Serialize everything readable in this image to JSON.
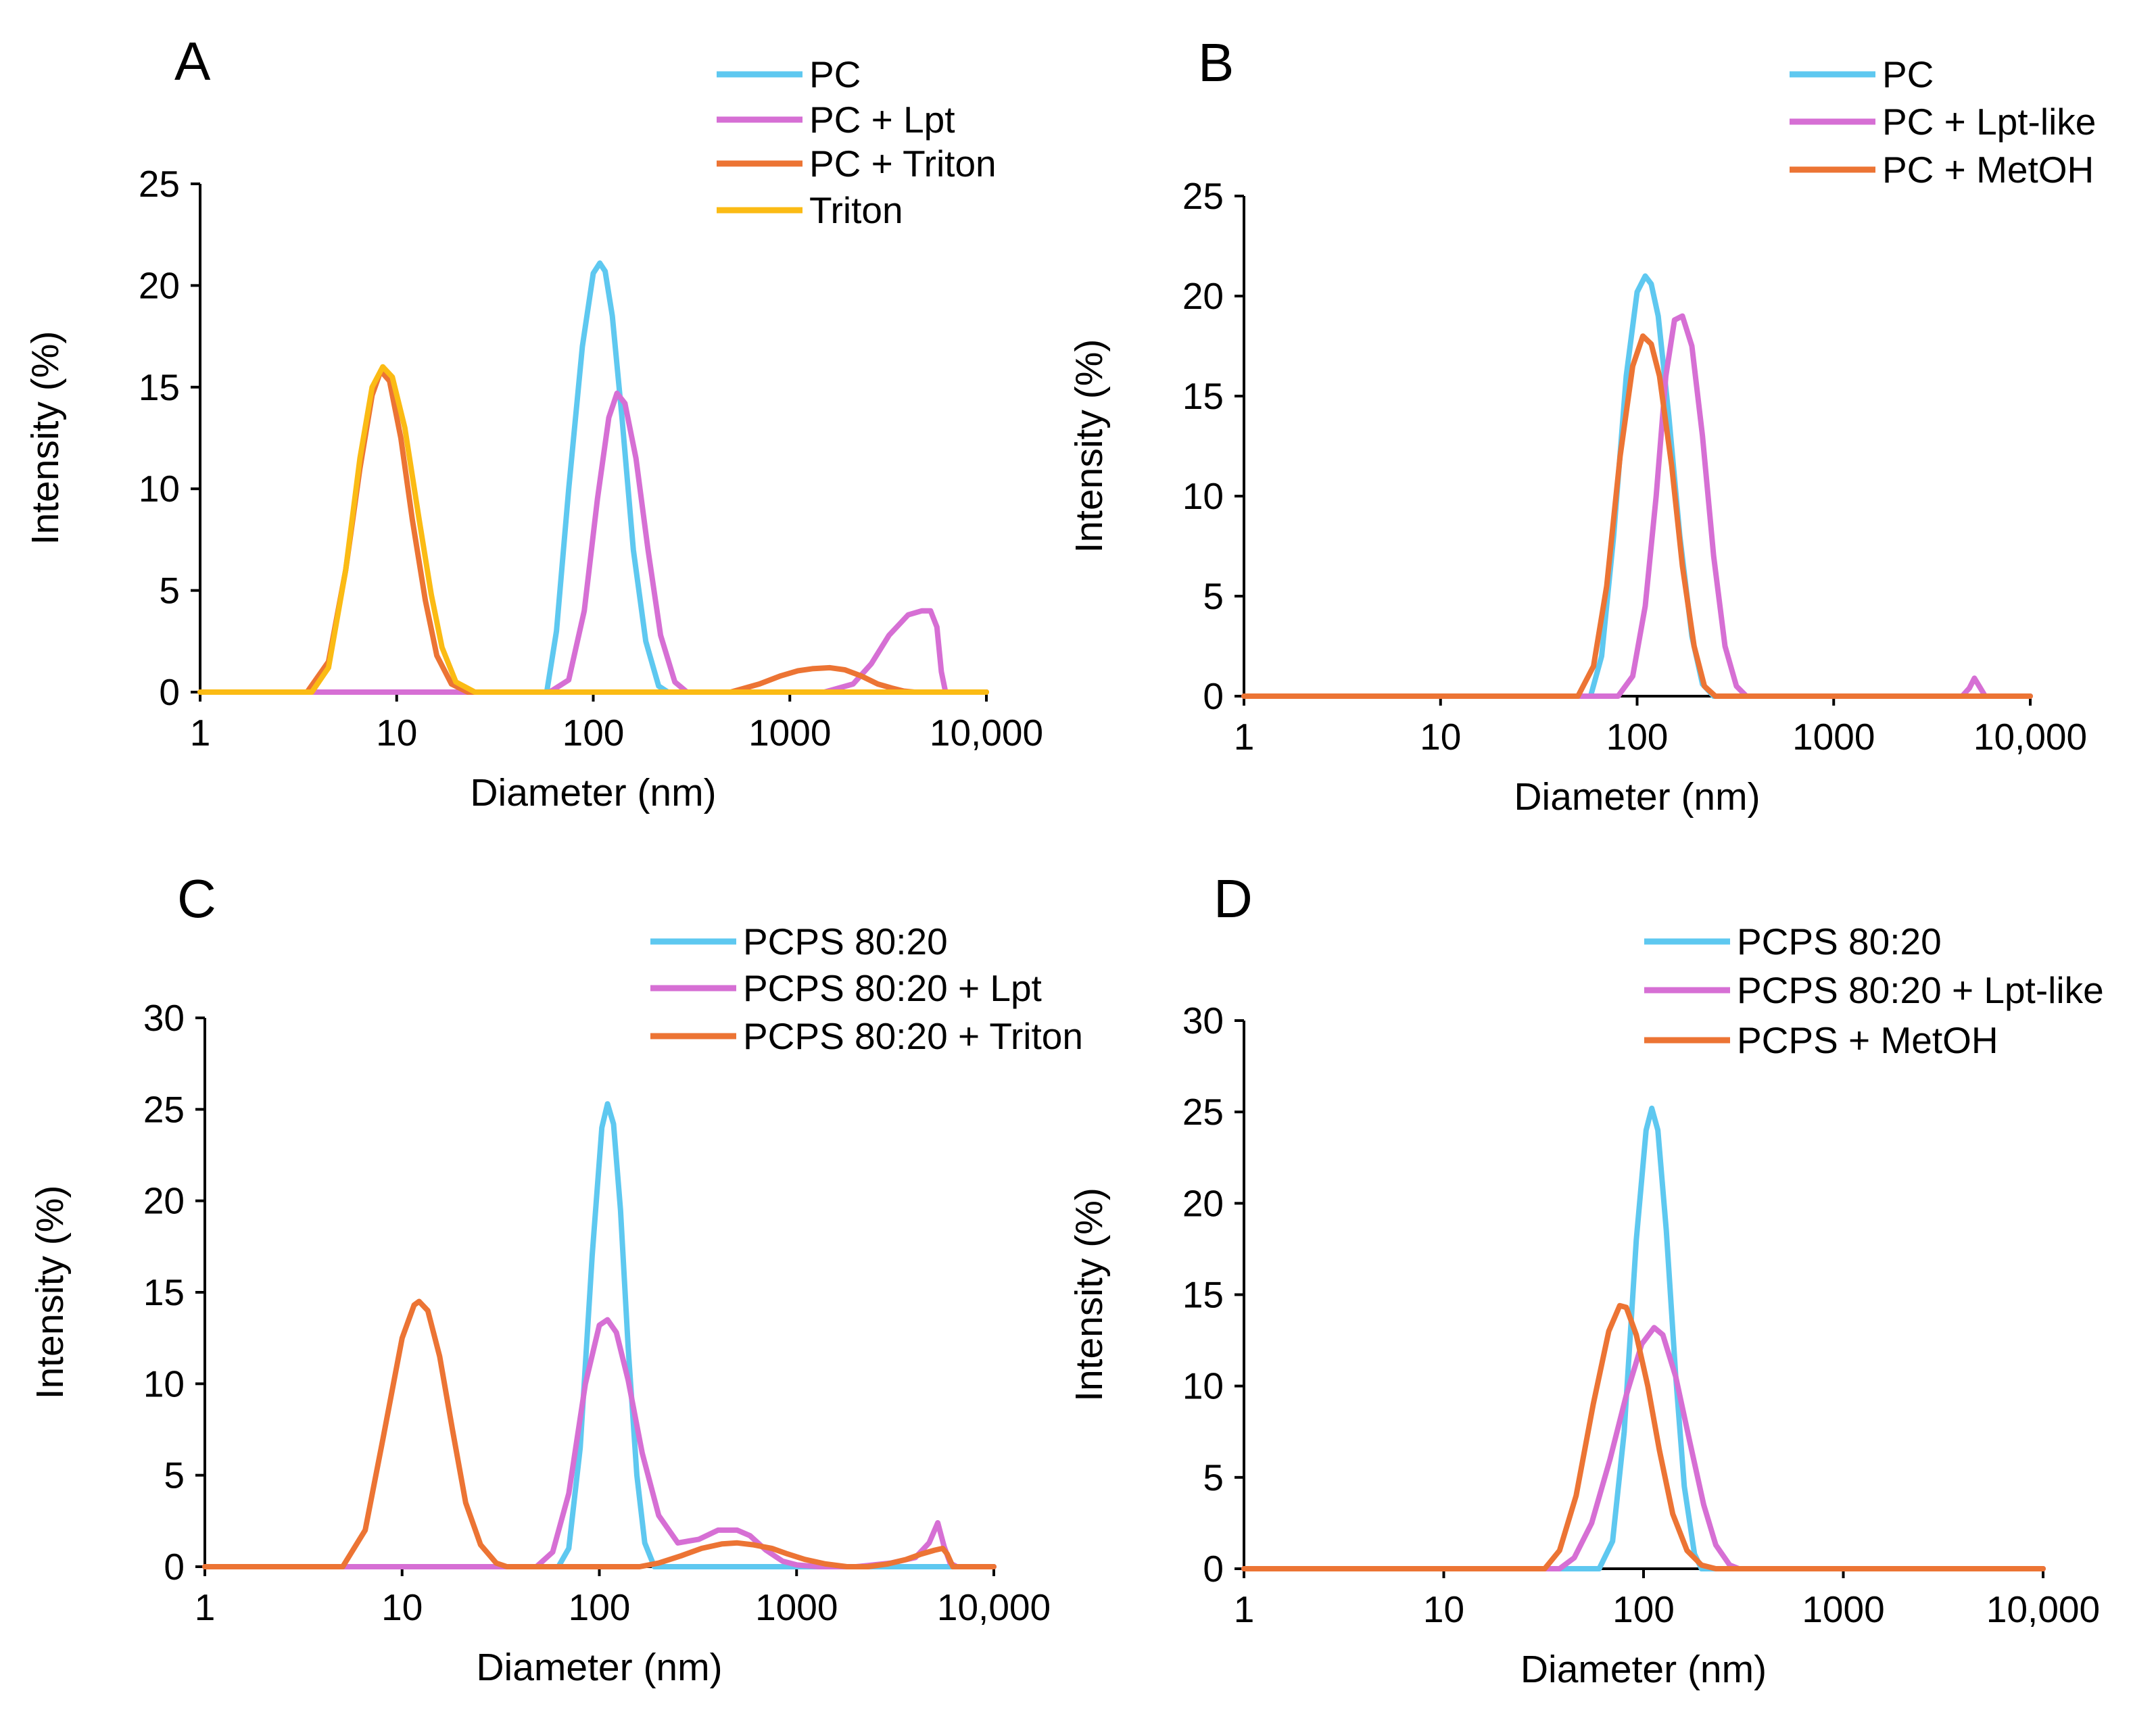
{
  "chart_data": [
    {
      "id": "A",
      "type": "line",
      "panel_label": "A",
      "xlabel": "Diameter (nm)",
      "ylabel": "Intensity (%)",
      "xscale": "log",
      "xlim": [
        1,
        10000
      ],
      "ylim": [
        0,
        25
      ],
      "xticks": [
        1,
        10,
        100,
        1000,
        10000
      ],
      "xtick_labels": [
        "1",
        "10",
        "100",
        "1000",
        "10,000"
      ],
      "yticks": [
        0,
        5,
        10,
        15,
        20,
        25
      ],
      "ytick_labels": [
        "0",
        "5",
        "10",
        "15",
        "20",
        "25"
      ],
      "legend_position": "top-right",
      "series": [
        {
          "name": "PC",
          "color": "#5ec8f0",
          "x": [
            1,
            58,
            65,
            75,
            88,
            100,
            108,
            115,
            125,
            140,
            160,
            185,
            215,
            240,
            10000
          ],
          "y": [
            0,
            0,
            3,
            10,
            17,
            20.6,
            21.1,
            20.7,
            18.5,
            13.5,
            7,
            2.5,
            0.3,
            0,
            0
          ]
        },
        {
          "name": "PC + Lpt",
          "color": "#d66fd4",
          "x": [
            1,
            60,
            75,
            90,
            105,
            120,
            132,
            145,
            165,
            190,
            220,
            260,
            300,
            1500,
            2100,
            2600,
            3200,
            4000,
            4700,
            5200,
            5600,
            5900,
            6200,
            10000
          ],
          "y": [
            0,
            0,
            0.6,
            4,
            9.5,
            13.5,
            14.7,
            14.2,
            11.5,
            7,
            2.8,
            0.5,
            0,
            0,
            0.4,
            1.4,
            2.8,
            3.8,
            4.0,
            4.0,
            3.2,
            1,
            0,
            0
          ]
        },
        {
          "name": "PC + Triton",
          "color": "#ec7434",
          "x": [
            1,
            3.5,
            4.5,
            5.5,
            6.5,
            7.5,
            8.3,
            9.2,
            10.5,
            12,
            14,
            16,
            19,
            23,
            500,
            700,
            900,
            1100,
            1300,
            1600,
            1900,
            2300,
            2800,
            3300,
            3800,
            4300,
            10000
          ],
          "y": [
            0,
            0,
            1.5,
            6,
            11,
            14.6,
            15.8,
            15.3,
            12.5,
            8.5,
            4.5,
            1.8,
            0.4,
            0,
            0,
            0.4,
            0.8,
            1.05,
            1.15,
            1.2,
            1.1,
            0.8,
            0.4,
            0.2,
            0.05,
            0,
            0
          ]
        },
        {
          "name": "Triton",
          "color": "#fbbb14",
          "x": [
            1,
            3.7,
            4.5,
            5.5,
            6.5,
            7.5,
            8.5,
            9.5,
            11,
            13,
            15,
            17,
            20,
            25,
            10000
          ],
          "y": [
            0,
            0,
            1.2,
            6,
            11.5,
            15,
            16,
            15.5,
            13,
            8.5,
            4.8,
            2.2,
            0.5,
            0,
            0
          ]
        }
      ]
    },
    {
      "id": "B",
      "type": "line",
      "panel_label": "B",
      "xlabel": "Diameter (nm)",
      "ylabel": "Intensity (%)",
      "xscale": "log",
      "xlim": [
        1,
        10000
      ],
      "ylim": [
        0,
        25
      ],
      "xticks": [
        1,
        10,
        100,
        1000,
        10000
      ],
      "xtick_labels": [
        "1",
        "10",
        "100",
        "1000",
        "10,000"
      ],
      "yticks": [
        0,
        5,
        10,
        15,
        20,
        25
      ],
      "ytick_labels": [
        "0",
        "5",
        "10",
        "15",
        "20",
        "25"
      ],
      "legend_position": "top-right",
      "series": [
        {
          "name": "PC",
          "color": "#5ec8f0",
          "x": [
            1,
            58,
            66,
            76,
            88,
            100,
            110,
            118,
            128,
            145,
            165,
            190,
            215,
            245,
            10000
          ],
          "y": [
            0,
            0,
            2,
            8,
            16,
            20.2,
            21,
            20.6,
            19,
            14,
            8,
            3,
            0.6,
            0,
            0
          ]
        },
        {
          "name": "PC + Lpt-like",
          "color": "#d66fd4",
          "x": [
            1,
            80,
            95,
            110,
            125,
            140,
            155,
            170,
            190,
            215,
            245,
            280,
            320,
            360,
            4500,
            4900,
            5200,
            5500,
            5900,
            10000
          ],
          "y": [
            0,
            0,
            1,
            4.5,
            10,
            16,
            18.8,
            19,
            17.5,
            13,
            7,
            2.5,
            0.5,
            0,
            0,
            0.4,
            0.9,
            0.5,
            0,
            0
          ]
        },
        {
          "name": "PC + MetOH",
          "color": "#ec7434",
          "x": [
            1,
            50,
            60,
            70,
            82,
            95,
            107,
            118,
            130,
            150,
            170,
            195,
            220,
            250,
            10000
          ],
          "y": [
            0,
            0,
            1.5,
            5.5,
            12,
            16.5,
            18,
            17.6,
            16,
            11.5,
            6.5,
            2.5,
            0.5,
            0,
            0
          ]
        }
      ]
    },
    {
      "id": "C",
      "type": "line",
      "panel_label": "C",
      "xlabel": "Diameter (nm)",
      "ylabel": "Intensity (%)",
      "xscale": "log",
      "xlim": [
        1,
        10000
      ],
      "ylim": [
        0,
        30
      ],
      "xticks": [
        1,
        10,
        100,
        1000,
        10000
      ],
      "xtick_labels": [
        "1",
        "10",
        "100",
        "1000",
        "10,000"
      ],
      "yticks": [
        0,
        5,
        10,
        15,
        20,
        25,
        30
      ],
      "ytick_labels": [
        "0",
        "5",
        "10",
        "15",
        "20",
        "25",
        "30"
      ],
      "legend_position": "top-right",
      "series": [
        {
          "name": "PCPS 80:20",
          "color": "#5ec8f0",
          "x": [
            1,
            62,
            70,
            80,
            92,
            103,
            110,
            118,
            128,
            140,
            155,
            170,
            190,
            10000
          ],
          "y": [
            0,
            0,
            1,
            6.5,
            17,
            24,
            25.3,
            24.2,
            19.5,
            12,
            5,
            1.3,
            0,
            0
          ]
        },
        {
          "name": "PCPS 80:20 + Lpt",
          "color": "#d66fd4",
          "x": [
            1,
            48,
            58,
            70,
            85,
            100,
            110,
            122,
            140,
            165,
            200,
            250,
            320,
            400,
            500,
            580,
            700,
            850,
            1000,
            1300,
            2000,
            3000,
            4000,
            4700,
            5200,
            5600,
            6000,
            6500,
            10000
          ],
          "y": [
            0,
            0,
            0.8,
            4,
            10,
            13.2,
            13.5,
            12.8,
            10.2,
            6.2,
            2.8,
            1.3,
            1.5,
            2.0,
            2.0,
            1.7,
            0.9,
            0.3,
            0.1,
            0,
            0,
            0.2,
            0.5,
            1.3,
            2.4,
            1.1,
            0.2,
            0,
            0
          ]
        },
        {
          "name": "PCPS 80:20 + Triton",
          "color": "#ec7434",
          "x": [
            1,
            5,
            6.5,
            8,
            10,
            11.5,
            12.2,
            13.5,
            15.5,
            18,
            21,
            25,
            30,
            34,
            160,
            200,
            260,
            330,
            420,
            500,
            600,
            750,
            900,
            1100,
            1400,
            1800,
            2300,
            2900,
            3600,
            4300,
            5000,
            5500,
            5800,
            6200,
            7500,
            10000
          ],
          "y": [
            0,
            0,
            2,
            7,
            12.5,
            14.3,
            14.5,
            14,
            11.5,
            7.5,
            3.5,
            1.2,
            0.2,
            0,
            0,
            0.2,
            0.6,
            1.0,
            1.25,
            1.3,
            1.2,
            1.0,
            0.7,
            0.4,
            0.15,
            0,
            0,
            0.15,
            0.4,
            0.7,
            0.9,
            1.0,
            0.7,
            0,
            0,
            0
          ]
        }
      ]
    },
    {
      "id": "D",
      "type": "line",
      "panel_label": "D",
      "xlabel": "Diameter (nm)",
      "ylabel": "Intensity (%)",
      "xscale": "log",
      "xlim": [
        1,
        10000
      ],
      "ylim": [
        0,
        30
      ],
      "xticks": [
        1,
        10,
        100,
        1000,
        10000
      ],
      "xtick_labels": [
        "1",
        "10",
        "100",
        "1000",
        "10,000"
      ],
      "yticks": [
        0,
        5,
        10,
        15,
        20,
        25,
        30
      ],
      "ytick_labels": [
        "0",
        "5",
        "10",
        "15",
        "20",
        "25",
        "30"
      ],
      "legend_position": "top-right",
      "series": [
        {
          "name": "PCPS 80:20",
          "color": "#5ec8f0",
          "x": [
            1,
            60,
            70,
            80,
            92,
            103,
            110,
            118,
            130,
            145,
            160,
            180,
            195,
            10000
          ],
          "y": [
            0,
            0,
            1.5,
            7.5,
            18,
            24,
            25.2,
            24,
            18.5,
            10.5,
            4.5,
            0.8,
            0,
            0
          ]
        },
        {
          "name": "PCPS 80:20 + Lpt-like",
          "color": "#d66fd4",
          "x": [
            1,
            38,
            45,
            55,
            68,
            82,
            98,
            113,
            125,
            145,
            170,
            200,
            230,
            270,
            300,
            10000
          ],
          "y": [
            0,
            0,
            0.6,
            2.5,
            6,
            9.5,
            12.3,
            13.2,
            12.8,
            10.5,
            7,
            3.5,
            1.3,
            0.2,
            0,
            0
          ]
        },
        {
          "name": "PCPS + MetOH",
          "color": "#ec7434",
          "x": [
            1,
            32,
            38,
            46,
            56,
            67,
            76,
            82,
            92,
            105,
            120,
            140,
            165,
            195,
            230,
            10000
          ],
          "y": [
            0,
            0,
            1,
            4,
            9,
            13,
            14.4,
            14.3,
            12.8,
            10,
            6.5,
            3,
            1,
            0.2,
            0,
            0
          ]
        }
      ]
    }
  ]
}
